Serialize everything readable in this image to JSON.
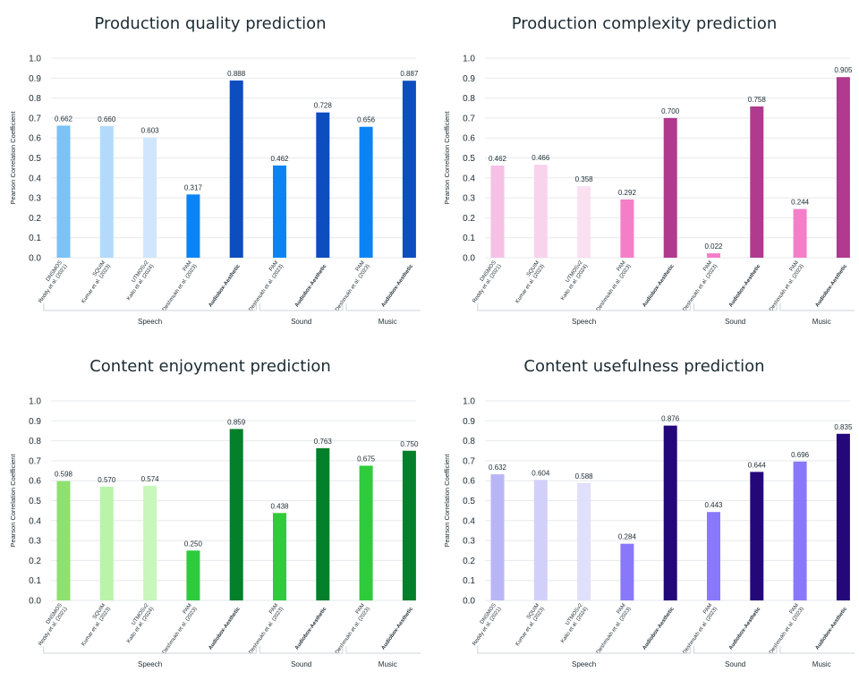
{
  "chart_data": [
    {
      "type": "bar",
      "title": "Production quality prediction",
      "ylabel": "Pearson Correlation Coefficient",
      "ylim": [
        0,
        1
      ],
      "yticks": [
        "0.0",
        "0.1",
        "0.2",
        "0.3",
        "0.4",
        "0.5",
        "0.6",
        "0.7",
        "0.8",
        "0.9",
        "1.0"
      ],
      "categories": [
        {
          "lines": [
            "DNSMOS",
            "Reddy et al. (2021)"
          ],
          "bold": false
        },
        {
          "lines": [
            "SQUIM",
            "Kumar et al. (2023)"
          ],
          "bold": false
        },
        {
          "lines": [
            "UTMOSv2",
            "Kaito et al. (2024)"
          ],
          "bold": false
        },
        {
          "lines": [
            "PAM",
            "Deshmukh et al. (2023)"
          ],
          "bold": false
        },
        {
          "lines": [
            "Audiobox-Aesthetic"
          ],
          "bold": true
        },
        {
          "lines": [
            "PAM",
            "Deshmukh et al. (2023)"
          ],
          "bold": false
        },
        {
          "lines": [
            "Audiobox-Aesthetic"
          ],
          "bold": true
        },
        {
          "lines": [
            "PAM",
            "Deshmukh et al. (2023)"
          ],
          "bold": false
        },
        {
          "lines": [
            "Audiobox-Aesthetic"
          ],
          "bold": true
        }
      ],
      "values": [
        0.662,
        0.66,
        0.603,
        0.317,
        0.888,
        0.462,
        0.728,
        0.656,
        0.887
      ],
      "value_labels": [
        "0.662",
        "0.660",
        "0.603",
        "0.317",
        "0.888",
        "0.462",
        "0.728",
        "0.656",
        "0.887"
      ],
      "colors": [
        "#7cc2f5",
        "#b4dafb",
        "#cfe6fc",
        "#0a84f5",
        "#0c4dbf",
        "#0a84f5",
        "#0c4dbf",
        "#0a84f5",
        "#0c4dbf"
      ],
      "groups": [
        {
          "label": "Speech",
          "start": 0,
          "end": 4
        },
        {
          "label": "Sound",
          "start": 5,
          "end": 6
        },
        {
          "label": "Music",
          "start": 7,
          "end": 8
        }
      ]
    },
    {
      "type": "bar",
      "title": "Production complexity prediction",
      "ylabel": "Pearson Correlation Coefficient",
      "ylim": [
        0,
        1
      ],
      "yticks": [
        "0.0",
        "0.1",
        "0.2",
        "0.3",
        "0.4",
        "0.5",
        "0.6",
        "0.7",
        "0.8",
        "0.9",
        "1.0"
      ],
      "categories": [
        {
          "lines": [
            "DNSMOS",
            "Reddy et al. (2021)"
          ],
          "bold": false
        },
        {
          "lines": [
            "SQUIM",
            "Kumar et al. (2023)"
          ],
          "bold": false
        },
        {
          "lines": [
            "UTMOSv2",
            "Kaito et al. (2024)"
          ],
          "bold": false
        },
        {
          "lines": [
            "PAM",
            "Deshmukh et al. (2023)"
          ],
          "bold": false
        },
        {
          "lines": [
            "Audiobox-Aesthetic"
          ],
          "bold": true
        },
        {
          "lines": [
            "PAM",
            "Deshmukh et al. (2023)"
          ],
          "bold": false
        },
        {
          "lines": [
            "Audiobox-Aesthetic"
          ],
          "bold": true
        },
        {
          "lines": [
            "PAM",
            "Deshmukh et al. (2023)"
          ],
          "bold": false
        },
        {
          "lines": [
            "Audiobox-Aesthetic"
          ],
          "bold": true
        }
      ],
      "values": [
        0.462,
        0.466,
        0.358,
        0.292,
        0.7,
        0.022,
        0.758,
        0.244,
        0.905
      ],
      "value_labels": [
        "0.462",
        "0.466",
        "0.358",
        "0.292",
        "0.700",
        "0.022",
        "0.758",
        "0.244",
        "0.905"
      ],
      "colors": [
        "#f6c1e5",
        "#f9d3ec",
        "#fbe0f1",
        "#f57ec9",
        "#b1398e",
        "#f57ec9",
        "#b1398e",
        "#f57ec9",
        "#b1398e"
      ],
      "groups": [
        {
          "label": "Speech",
          "start": 0,
          "end": 4
        },
        {
          "label": "Sound",
          "start": 5,
          "end": 6
        },
        {
          "label": "Music",
          "start": 7,
          "end": 8
        }
      ]
    },
    {
      "type": "bar",
      "title": "Content enjoyment prediction",
      "ylabel": "Pearson Correlation Coefficient",
      "ylim": [
        0,
        1
      ],
      "yticks": [
        "0.0",
        "0.1",
        "0.2",
        "0.3",
        "0.4",
        "0.5",
        "0.6",
        "0.7",
        "0.8",
        "0.9",
        "1.0"
      ],
      "categories": [
        {
          "lines": [
            "DNSMOS",
            "Reddy et al. (2021)"
          ],
          "bold": false
        },
        {
          "lines": [
            "SQUIM",
            "Kumar et al. (2023)"
          ],
          "bold": false
        },
        {
          "lines": [
            "UTMOSv2",
            "Kaito et al. (2024)"
          ],
          "bold": false
        },
        {
          "lines": [
            "PAM",
            "Deshmukh et al. (2023)"
          ],
          "bold": false
        },
        {
          "lines": [
            "Audiobox-Aesthetic"
          ],
          "bold": true
        },
        {
          "lines": [
            "PAM",
            "Deshmukh et al. (2023)"
          ],
          "bold": false
        },
        {
          "lines": [
            "Audiobox-Aesthetic"
          ],
          "bold": true
        },
        {
          "lines": [
            "PAM",
            "Deshmukh et al. (2023)"
          ],
          "bold": false
        },
        {
          "lines": [
            "Audiobox-Aesthetic"
          ],
          "bold": true
        }
      ],
      "values": [
        0.598,
        0.57,
        0.574,
        0.25,
        0.859,
        0.438,
        0.763,
        0.675,
        0.75
      ],
      "value_labels": [
        "0.598",
        "0.570",
        "0.574",
        "0.250",
        "0.859",
        "0.438",
        "0.763",
        "0.675",
        "0.750"
      ],
      "colors": [
        "#8ee06f",
        "#b9f4a9",
        "#c7f7bb",
        "#2ecc3d",
        "#047f2a",
        "#2ecc3d",
        "#047f2a",
        "#2ecc3d",
        "#047f2a"
      ],
      "groups": [
        {
          "label": "Speech",
          "start": 0,
          "end": 4
        },
        {
          "label": "Sound",
          "start": 5,
          "end": 6
        },
        {
          "label": "Music",
          "start": 7,
          "end": 8
        }
      ]
    },
    {
      "type": "bar",
      "title": "Content usefulness prediction",
      "ylabel": "Pearson Correlation Coefficient",
      "ylim": [
        0,
        1
      ],
      "yticks": [
        "0.0",
        "0.1",
        "0.2",
        "0.3",
        "0.4",
        "0.5",
        "0.6",
        "0.7",
        "0.8",
        "0.9",
        "1.0"
      ],
      "categories": [
        {
          "lines": [
            "DNSMOS",
            "Reddy et al. (2021)"
          ],
          "bold": false
        },
        {
          "lines": [
            "SQUIM",
            "Kumar et al. (2023)"
          ],
          "bold": false
        },
        {
          "lines": [
            "UTMOSv2",
            "Kaito et al. (2024)"
          ],
          "bold": false
        },
        {
          "lines": [
            "PAM",
            "Deshmukh et al. (2023)"
          ],
          "bold": false
        },
        {
          "lines": [
            "Audiobox-Aesthetic"
          ],
          "bold": true
        },
        {
          "lines": [
            "PAM",
            "Deshmukh et al. (2023)"
          ],
          "bold": false
        },
        {
          "lines": [
            "Audiobox-Aesthetic"
          ],
          "bold": true
        },
        {
          "lines": [
            "PAM",
            "Deshmukh et al. (2023)"
          ],
          "bold": false
        },
        {
          "lines": [
            "Audiobox-Aesthetic"
          ],
          "bold": true
        }
      ],
      "values": [
        0.632,
        0.604,
        0.588,
        0.284,
        0.876,
        0.443,
        0.644,
        0.696,
        0.835
      ],
      "value_labels": [
        "0.632",
        "0.604",
        "0.588",
        "0.284",
        "0.876",
        "0.443",
        "0.644",
        "0.696",
        "0.835"
      ],
      "colors": [
        "#b9b6f8",
        "#d2d0fa",
        "#e0dffc",
        "#8a78fa",
        "#24087a",
        "#8a78fa",
        "#24087a",
        "#8a78fa",
        "#24087a"
      ],
      "groups": [
        {
          "label": "Speech",
          "start": 0,
          "end": 4
        },
        {
          "label": "Sound",
          "start": 5,
          "end": 6
        },
        {
          "label": "Music",
          "start": 7,
          "end": 8
        }
      ]
    }
  ]
}
